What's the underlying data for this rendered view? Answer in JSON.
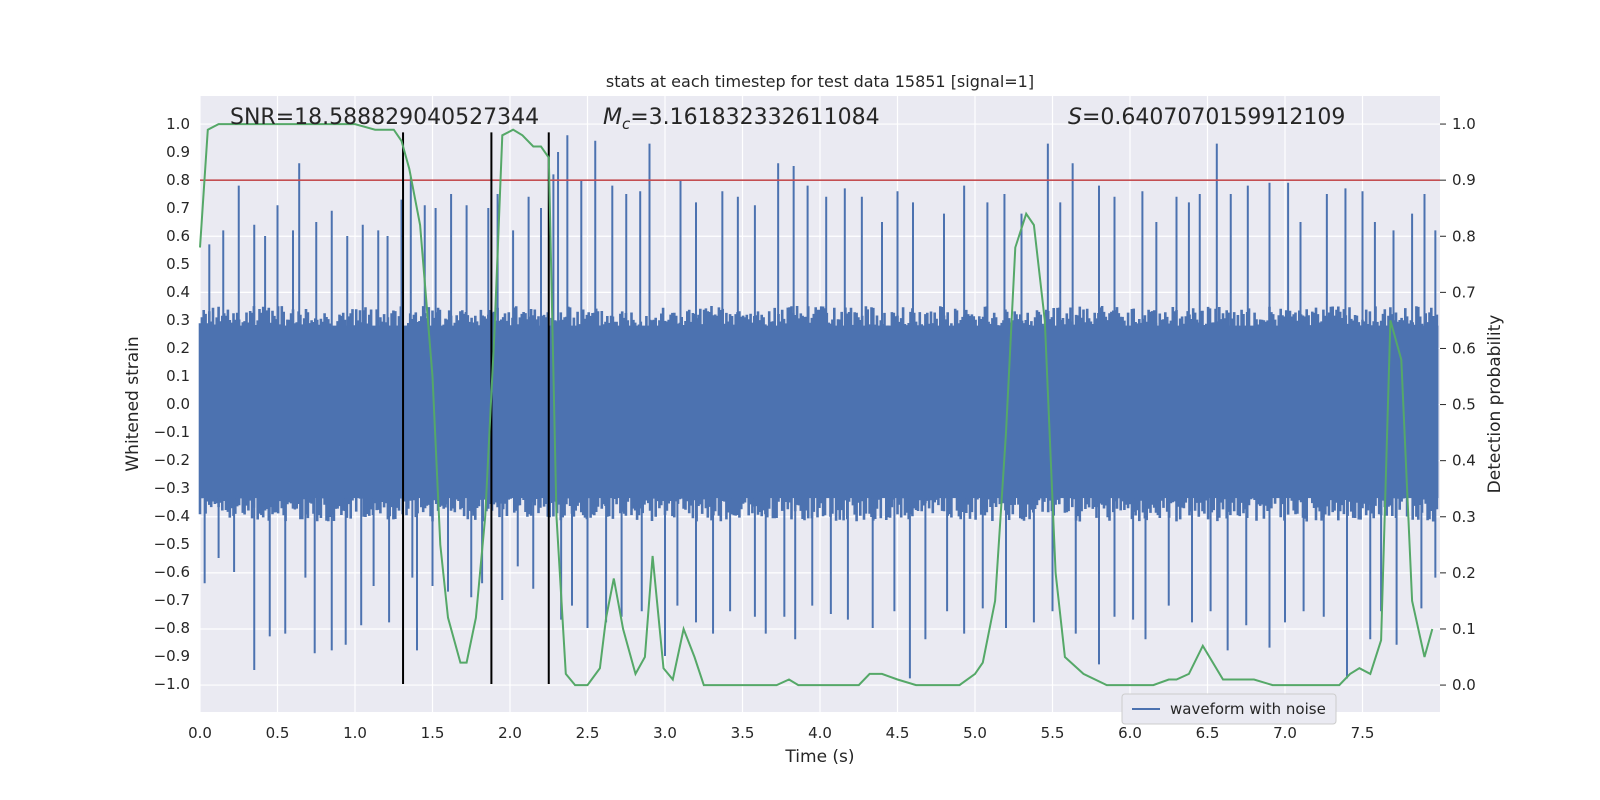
{
  "chart_data": {
    "type": "line",
    "title": "stats at each timestep for test data 15851 [signal=1]",
    "xlabel": "Time (s)",
    "ylabel": "Whitened strain",
    "y2label": "Detection probability",
    "xlim": [
      0.0,
      8.0
    ],
    "ylim": [
      -1.1,
      1.1
    ],
    "y2lim": [
      -0.048,
      1.05
    ],
    "x_ticks": [
      "0.0",
      "0.5",
      "1.0",
      "1.5",
      "2.0",
      "2.5",
      "3.0",
      "3.5",
      "4.0",
      "4.5",
      "5.0",
      "5.5",
      "6.0",
      "6.5",
      "7.0",
      "7.5"
    ],
    "y_ticks": [
      "1.0",
      "0.9",
      "0.8",
      "0.7",
      "0.6",
      "0.5",
      "0.4",
      "0.3",
      "0.2",
      "0.1",
      "0.0",
      "-0.1",
      "-0.2",
      "-0.3",
      "-0.4",
      "-0.5",
      "-0.6",
      "-0.7",
      "-0.8",
      "-0.9",
      "-1.0"
    ],
    "y2_ticks": [
      "1.0",
      "0.9",
      "0.8",
      "0.7",
      "0.6",
      "0.5",
      "0.4",
      "0.3",
      "0.2",
      "0.1",
      "0.0"
    ],
    "grid": true,
    "annotations": {
      "snr": "SNR=18.588829040527344",
      "mc_symbol": "M",
      "mc_subscript": "c",
      "mc_value": "=3.161832332611084",
      "s_symbol": "S",
      "s_value": "=0.6407070159912109"
    },
    "threshold": {
      "axis": "y2",
      "value": 0.9,
      "color": "#c44e52"
    },
    "vlines": [
      1.31,
      1.88,
      2.25
    ],
    "vline_range": [
      -1.0,
      0.97
    ],
    "legend": {
      "label": "waveform with noise",
      "placement": "lower-right"
    },
    "series": [
      {
        "name": "waveform with noise",
        "axis": "y",
        "color": "#4c72b0",
        "envelope_upper": 0.35,
        "envelope_lower": -0.42,
        "spikes_up": [
          [
            0.06,
            0.57
          ],
          [
            0.15,
            0.62
          ],
          [
            0.25,
            0.78
          ],
          [
            0.35,
            0.64
          ],
          [
            0.42,
            0.6
          ],
          [
            0.5,
            0.71
          ],
          [
            0.6,
            0.62
          ],
          [
            0.64,
            0.86
          ],
          [
            0.75,
            0.65
          ],
          [
            0.85,
            0.69
          ],
          [
            0.95,
            0.6
          ],
          [
            1.05,
            0.64
          ],
          [
            1.15,
            0.62
          ],
          [
            1.21,
            0.6
          ],
          [
            1.3,
            0.73
          ],
          [
            1.36,
            0.81
          ],
          [
            1.45,
            0.71
          ],
          [
            1.52,
            0.7
          ],
          [
            1.62,
            0.75
          ],
          [
            1.72,
            0.71
          ],
          [
            1.86,
            0.7
          ],
          [
            1.92,
            0.75
          ],
          [
            2.02,
            0.62
          ],
          [
            2.12,
            0.74
          ],
          [
            2.2,
            0.7
          ],
          [
            2.28,
            0.82
          ],
          [
            2.31,
            0.9
          ],
          [
            2.37,
            0.96
          ],
          [
            2.46,
            0.8
          ],
          [
            2.55,
            0.94
          ],
          [
            2.66,
            0.78
          ],
          [
            2.75,
            0.75
          ],
          [
            2.84,
            0.76
          ],
          [
            2.9,
            0.93
          ],
          [
            3.1,
            0.8
          ],
          [
            3.2,
            0.72
          ],
          [
            3.37,
            0.76
          ],
          [
            3.47,
            0.74
          ],
          [
            3.58,
            0.71
          ],
          [
            3.73,
            0.86
          ],
          [
            3.83,
            0.85
          ],
          [
            3.92,
            0.78
          ],
          [
            4.04,
            0.74
          ],
          [
            4.16,
            0.77
          ],
          [
            4.27,
            0.74
          ],
          [
            4.4,
            0.65
          ],
          [
            4.5,
            0.76
          ],
          [
            4.6,
            0.72
          ],
          [
            4.8,
            0.68
          ],
          [
            4.93,
            0.78
          ],
          [
            5.08,
            0.72
          ],
          [
            5.19,
            0.75
          ],
          [
            5.3,
            0.68
          ],
          [
            5.47,
            0.93
          ],
          [
            5.55,
            0.72
          ],
          [
            5.63,
            0.86
          ],
          [
            5.8,
            0.78
          ],
          [
            5.9,
            0.74
          ],
          [
            6.08,
            0.76
          ],
          [
            6.17,
            0.65
          ],
          [
            6.3,
            0.74
          ],
          [
            6.38,
            0.72
          ],
          [
            6.45,
            0.75
          ],
          [
            6.56,
            0.93
          ],
          [
            6.65,
            0.75
          ],
          [
            6.76,
            0.78
          ],
          [
            6.9,
            0.79
          ],
          [
            7.02,
            0.79
          ],
          [
            7.1,
            0.65
          ],
          [
            7.27,
            0.75
          ],
          [
            7.39,
            0.77
          ],
          [
            7.5,
            0.76
          ],
          [
            7.58,
            0.65
          ],
          [
            7.7,
            0.62
          ],
          [
            7.82,
            0.68
          ],
          [
            7.9,
            0.75
          ],
          [
            7.97,
            0.62
          ]
        ],
        "spikes_down": [
          [
            0.03,
            -0.64
          ],
          [
            0.12,
            -0.55
          ],
          [
            0.22,
            -0.6
          ],
          [
            0.35,
            -0.95
          ],
          [
            0.45,
            -0.83
          ],
          [
            0.55,
            -0.82
          ],
          [
            0.68,
            -0.62
          ],
          [
            0.74,
            -0.89
          ],
          [
            0.85,
            -0.88
          ],
          [
            0.94,
            -0.86
          ],
          [
            1.04,
            -0.79
          ],
          [
            1.12,
            -0.65
          ],
          [
            1.22,
            -0.78
          ],
          [
            1.37,
            -0.62
          ],
          [
            1.4,
            -0.88
          ],
          [
            1.5,
            -0.65
          ],
          [
            1.6,
            -0.67
          ],
          [
            1.75,
            -0.69
          ],
          [
            1.82,
            -0.64
          ],
          [
            1.95,
            -0.7
          ],
          [
            2.05,
            -0.58
          ],
          [
            2.15,
            -0.66
          ],
          [
            2.33,
            -0.77
          ],
          [
            2.4,
            -0.72
          ],
          [
            2.5,
            -0.8
          ],
          [
            2.62,
            -0.78
          ],
          [
            2.72,
            -0.76
          ],
          [
            2.85,
            -0.74
          ],
          [
            3.0,
            -0.9
          ],
          [
            3.08,
            -0.72
          ],
          [
            3.2,
            -0.78
          ],
          [
            3.31,
            -0.82
          ],
          [
            3.42,
            -0.74
          ],
          [
            3.58,
            -0.76
          ],
          [
            3.65,
            -0.82
          ],
          [
            3.77,
            -0.76
          ],
          [
            3.84,
            -0.84
          ],
          [
            3.95,
            -0.72
          ],
          [
            4.07,
            -0.75
          ],
          [
            4.18,
            -0.77
          ],
          [
            4.34,
            -0.8
          ],
          [
            4.48,
            -0.74
          ],
          [
            4.58,
            -0.98
          ],
          [
            4.68,
            -0.84
          ],
          [
            4.82,
            -0.74
          ],
          [
            4.93,
            -0.82
          ],
          [
            5.05,
            -0.73
          ],
          [
            5.2,
            -0.8
          ],
          [
            5.38,
            -0.78
          ],
          [
            5.5,
            -0.74
          ],
          [
            5.65,
            -0.82
          ],
          [
            5.8,
            -0.93
          ],
          [
            5.9,
            -0.76
          ],
          [
            6.02,
            -0.77
          ],
          [
            6.1,
            -0.84
          ],
          [
            6.25,
            -0.72
          ],
          [
            6.4,
            -0.78
          ],
          [
            6.52,
            -0.74
          ],
          [
            6.63,
            -0.88
          ],
          [
            6.75,
            -0.79
          ],
          [
            6.9,
            -0.87
          ],
          [
            7.0,
            -0.78
          ],
          [
            7.12,
            -0.74
          ],
          [
            7.25,
            -0.76
          ],
          [
            7.4,
            -0.98
          ],
          [
            7.55,
            -0.84
          ],
          [
            7.62,
            -0.74
          ],
          [
            7.72,
            -0.86
          ],
          [
            7.88,
            -0.73
          ],
          [
            7.97,
            -0.62
          ]
        ]
      },
      {
        "name": "Detection probability",
        "axis": "y2",
        "color": "#55a868",
        "x": [
          0.0,
          0.05,
          0.12,
          0.4,
          0.8,
          1.0,
          1.13,
          1.25,
          1.3,
          1.35,
          1.42,
          1.5,
          1.55,
          1.6,
          1.68,
          1.72,
          1.78,
          1.84,
          1.9,
          1.95,
          2.02,
          2.08,
          2.15,
          2.2,
          2.25,
          2.3,
          2.36,
          2.42,
          2.5,
          2.58,
          2.62,
          2.67,
          2.73,
          2.81,
          2.87,
          2.92,
          2.99,
          3.05,
          3.12,
          3.19,
          3.25,
          3.32,
          3.4,
          3.5,
          3.62,
          3.72,
          3.8,
          3.86,
          3.94,
          4.05,
          4.15,
          4.25,
          4.32,
          4.4,
          4.5,
          4.62,
          4.75,
          4.9,
          5.0,
          5.05,
          5.13,
          5.2,
          5.26,
          5.33,
          5.38,
          5.45,
          5.52,
          5.58,
          5.7,
          5.85,
          6.0,
          6.15,
          6.25,
          6.3,
          6.38,
          6.47,
          6.6,
          6.8,
          6.92,
          7.1,
          7.3,
          7.35,
          7.42,
          7.48,
          7.55,
          7.62,
          7.68,
          7.75,
          7.82,
          7.9,
          7.95
        ],
        "y": [
          0.78,
          0.99,
          1.0,
          1.0,
          1.0,
          1.0,
          0.99,
          0.99,
          0.97,
          0.92,
          0.82,
          0.55,
          0.25,
          0.12,
          0.04,
          0.04,
          0.12,
          0.3,
          0.63,
          0.98,
          0.99,
          0.98,
          0.96,
          0.96,
          0.94,
          0.3,
          0.02,
          0.0,
          0.0,
          0.03,
          0.12,
          0.19,
          0.1,
          0.02,
          0.05,
          0.23,
          0.03,
          0.01,
          0.1,
          0.05,
          0.0,
          0.0,
          0.0,
          0.0,
          0.0,
          0.0,
          0.01,
          0.0,
          0.0,
          0.0,
          0.0,
          0.0,
          0.02,
          0.02,
          0.01,
          0.0,
          0.0,
          0.0,
          0.02,
          0.04,
          0.15,
          0.45,
          0.78,
          0.84,
          0.82,
          0.65,
          0.2,
          0.05,
          0.02,
          0.0,
          0.0,
          0.0,
          0.01,
          0.01,
          0.02,
          0.07,
          0.01,
          0.01,
          0.0,
          0.0,
          0.0,
          0.0,
          0.02,
          0.03,
          0.02,
          0.08,
          0.65,
          0.58,
          0.15,
          0.05,
          0.1
        ]
      }
    ]
  }
}
